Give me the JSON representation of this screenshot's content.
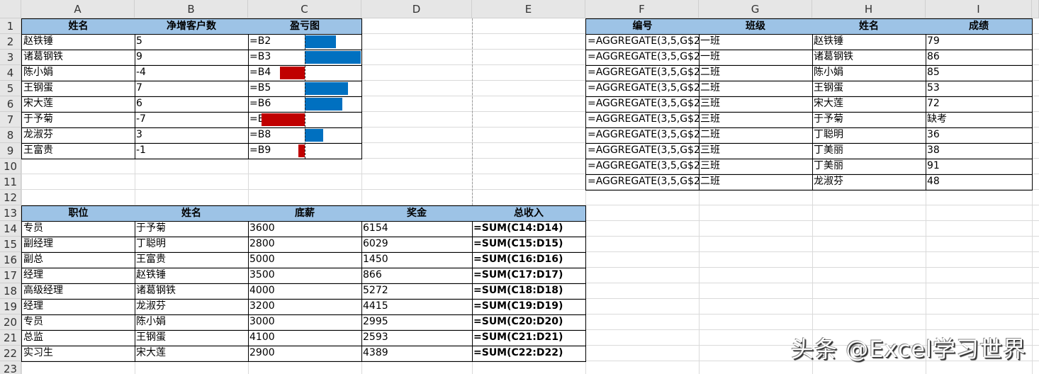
{
  "columns": [
    "A",
    "B",
    "C",
    "D",
    "E",
    "F",
    "G",
    "H",
    "I"
  ],
  "rows": 23,
  "colors": {
    "positive_bar": "#0070c0",
    "negative_bar": "#c00000",
    "header_fill": "#9dc3e6"
  },
  "table1": {
    "headers": [
      "姓名",
      "净增客户数",
      "盈亏图"
    ],
    "rows": [
      [
        "赵铁锤",
        "5",
        "=B2"
      ],
      [
        "诸葛钢铁",
        "9",
        "=B3"
      ],
      [
        "陈小娟",
        "-4",
        "=B4"
      ],
      [
        "王钢蛋",
        "7",
        "=B5"
      ],
      [
        "宋大莲",
        "6",
        "=B6"
      ],
      [
        "于予菊",
        "-7",
        "=B7"
      ],
      [
        "龙淑芬",
        "3",
        "=B8"
      ],
      [
        "王富贵",
        "-1",
        "=B9"
      ]
    ],
    "databar_values": [
      5,
      9,
      -4,
      7,
      6,
      -7,
      3,
      -1
    ],
    "databar_range": [
      -9,
      9
    ]
  },
  "table2": {
    "headers": [
      "编号",
      "班级",
      "姓名",
      "成绩"
    ],
    "rows": [
      [
        "=AGGREGATE(3,5,G$2",
        "一班",
        "赵铁锤",
        "79"
      ],
      [
        "=AGGREGATE(3,5,G$2",
        "一班",
        "诸葛钢铁",
        "86"
      ],
      [
        "=AGGREGATE(3,5,G$2",
        "二班",
        "陈小娟",
        "85"
      ],
      [
        "=AGGREGATE(3,5,G$2",
        "二班",
        "王钢蛋",
        "53"
      ],
      [
        "=AGGREGATE(3,5,G$2",
        "三班",
        "宋大莲",
        "72"
      ],
      [
        "=AGGREGATE(3,5,G$2",
        "三班",
        "于予菊",
        "缺考"
      ],
      [
        "=AGGREGATE(3,5,G$2",
        "二班",
        "丁聪明",
        "36"
      ],
      [
        "=AGGREGATE(3,5,G$2",
        "三班",
        "丁美丽",
        "38"
      ],
      [
        "=AGGREGATE(3,5,G$2",
        "三班",
        "丁美丽",
        "91"
      ],
      [
        "=AGGREGATE(3,5,G$2",
        "二班",
        "龙淑芬",
        "48"
      ]
    ]
  },
  "table3": {
    "headers": [
      "职位",
      "姓名",
      "底薪",
      "奖金",
      "总收入"
    ],
    "rows": [
      [
        "专员",
        "于予菊",
        "3600",
        "6154",
        "=SUM(C14:D14)"
      ],
      [
        "副经理",
        "丁聪明",
        "2800",
        "6029",
        "=SUM(C15:D15)"
      ],
      [
        "副总",
        "王富贵",
        "5000",
        "1450",
        "=SUM(C16:D16)"
      ],
      [
        "经理",
        "赵铁锤",
        "3500",
        "866",
        "=SUM(C17:D17)"
      ],
      [
        "高级经理",
        "诸葛钢铁",
        "4000",
        "5272",
        "=SUM(C18:D18)"
      ],
      [
        "经理",
        "龙淑芬",
        "3200",
        "4415",
        "=SUM(C19:D19)"
      ],
      [
        "专员",
        "陈小娟",
        "3000",
        "2995",
        "=SUM(C20:D20)"
      ],
      [
        "总监",
        "王钢蛋",
        "4100",
        "2593",
        "=SUM(C21:D21)"
      ],
      [
        "实习生",
        "宋大莲",
        "2900",
        "4389",
        "=SUM(C22:D22)"
      ]
    ]
  },
  "watermark": "头条 @Excel学习世界"
}
